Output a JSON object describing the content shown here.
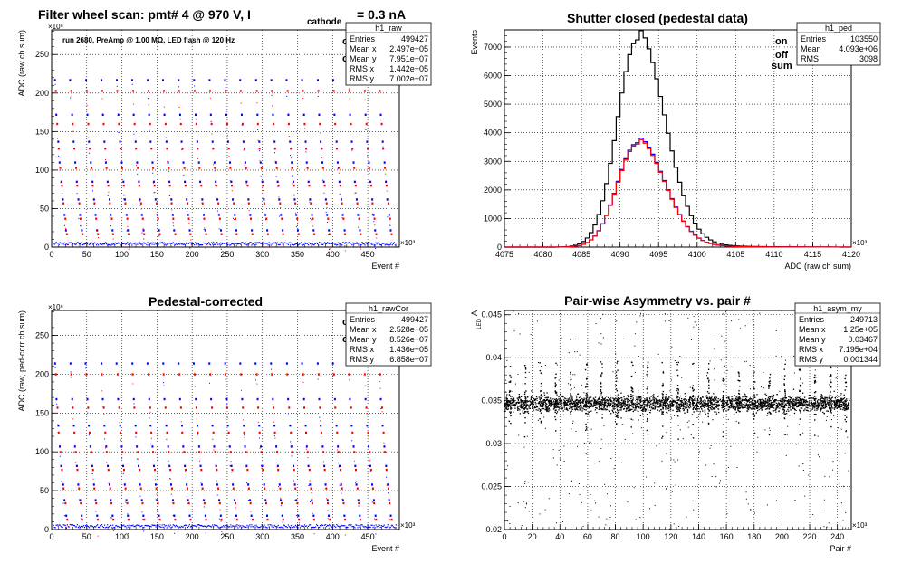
{
  "chart_data": [
    {
      "type": "scatter",
      "title": "Filter wheel scan: pmt#   4 @   970 V, I",
      "title_sub": "cathode",
      "title_tail": "= 0.3 nA",
      "annotation": "run 2680, PreAmp @ 1.00 MΩ, LED flash @  120 Hz",
      "xlabel": "Event #",
      "ylabel": "ADC (raw ch sum)",
      "x_exponent": "×10³",
      "y_exponent": "×10⁶",
      "xlim": [
        0,
        495
      ],
      "ylim": [
        0,
        282
      ],
      "xticks": [
        "0",
        "50",
        "100",
        "150",
        "200",
        "250",
        "300",
        "350",
        "400",
        "450"
      ],
      "yticks": [
        "0",
        "50",
        "100",
        "150",
        "200",
        "250"
      ],
      "grid": true,
      "legend": {
        "on": "on",
        "off": "off"
      },
      "colors": {
        "on": "#0000ff",
        "off": "#ff0000",
        "ped": "#0000ff"
      },
      "levels_on": [
        217,
        172,
        137,
        110,
        85,
        62,
        42,
        22
      ],
      "levels_off": [
        203,
        160,
        128,
        103,
        80,
        57,
        37,
        17
      ],
      "period_events": 22,
      "stats": {
        "name": "h1_raw",
        "rows": [
          {
            "label": "Entries",
            "value": "499427"
          },
          {
            "label": "Mean x",
            "value": "2.497e+05"
          },
          {
            "label": "Mean y",
            "value": "7.951e+07"
          },
          {
            "label": "RMS x",
            "value": "1.442e+05"
          },
          {
            "label": "RMS y",
            "value": "7.002e+07"
          }
        ]
      }
    },
    {
      "type": "line",
      "title": "Shutter closed (pedestal data)",
      "xlabel": "ADC (raw ch sum)",
      "ylabel": "Events",
      "x_exponent": "×10³",
      "xlim": [
        4075,
        4120
      ],
      "ylim": [
        0,
        7600
      ],
      "xticks": [
        "4075",
        "4080",
        "4085",
        "4090",
        "4095",
        "4100",
        "4105",
        "4110",
        "4115",
        "4120"
      ],
      "yticks": [
        "0",
        "1000",
        "2000",
        "3000",
        "4000",
        "5000",
        "6000",
        "7000"
      ],
      "grid": true,
      "legend": {
        "on": "on",
        "off": "off",
        "sum": "sum"
      },
      "mean_x": 4092,
      "series": [
        {
          "name": "sum",
          "color": "#000000",
          "peak": 7250,
          "sigma": 2.6
        },
        {
          "name": "on",
          "color": "#0000ff",
          "peak": 3650,
          "sigma": 2.6
        },
        {
          "name": "off",
          "color": "#ff0000",
          "peak": 3600,
          "sigma": 2.6
        }
      ],
      "stats": {
        "name": "h1_ped",
        "rows": [
          {
            "label": "Entries",
            "value": "103550"
          },
          {
            "label": "Mean",
            "value": "4.093e+06"
          },
          {
            "label": "RMS",
            "value": "3098"
          }
        ]
      }
    },
    {
      "type": "scatter",
      "title": "Pedestal-corrected",
      "xlabel": "Event #",
      "ylabel": "ADC (raw, ped-corr ch sum)",
      "x_exponent": "×10³",
      "y_exponent": "×10⁶",
      "xlim": [
        0,
        495
      ],
      "ylim": [
        0,
        282
      ],
      "xticks": [
        "0",
        "50",
        "100",
        "150",
        "200",
        "250",
        "300",
        "350",
        "400",
        "450"
      ],
      "yticks": [
        "0",
        "50",
        "100",
        "150",
        "200",
        "250"
      ],
      "grid": true,
      "legend": {
        "on": "on",
        "off": "off"
      },
      "colors": {
        "on": "#0000ff",
        "off": "#ff0000"
      },
      "levels_on": [
        214,
        168,
        134,
        107,
        82,
        58,
        38,
        18
      ],
      "levels_off": [
        200,
        157,
        125,
        100,
        77,
        53,
        34,
        13
      ],
      "period_events": 22,
      "stats": {
        "name": "h1_rawCor",
        "rows": [
          {
            "label": "Entries",
            "value": "499427"
          },
          {
            "label": "Mean x",
            "value": "2.528e+05"
          },
          {
            "label": "Mean y",
            "value": "8.526e+07"
          },
          {
            "label": "RMS x",
            "value": "1.436e+05"
          },
          {
            "label": "RMS y",
            "value": "6.858e+07"
          }
        ]
      }
    },
    {
      "type": "scatter",
      "title": "Pair-wise Asymmetry vs. pair #",
      "xlabel": "Pair #",
      "ylabel": "A",
      "ylabel_sub": "LED",
      "x_exponent": "×10³",
      "xlim": [
        0,
        250
      ],
      "ylim": [
        0.02,
        0.0455
      ],
      "xticks": [
        "0",
        "20",
        "40",
        "60",
        "80",
        "100",
        "120",
        "140",
        "160",
        "180",
        "200",
        "220",
        "240"
      ],
      "yticks": [
        "0.02",
        "0.025",
        "0.03",
        "0.035",
        "0.04",
        "0.045"
      ],
      "grid": true,
      "band_center": 0.0347,
      "band_halfwidth": 0.0008,
      "spike_period": 11,
      "color": "#000000",
      "stats": {
        "name": "h1_asym_my",
        "rows": [
          {
            "label": "Entries",
            "value": "249713"
          },
          {
            "label": "Mean x",
            "value": "1.25e+05"
          },
          {
            "label": "Mean y",
            "value": "0.03467"
          },
          {
            "label": "RMS x",
            "value": "7.195e+04"
          },
          {
            "label": "RMS y",
            "value": "0.001344"
          }
        ]
      }
    }
  ]
}
